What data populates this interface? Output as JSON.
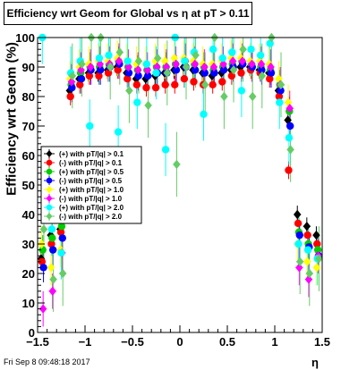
{
  "chart_data": {
    "type": "scatter",
    "title": "Efficiency wrt Geom for Global vs   η at pT > 0.11",
    "xlabel": "η",
    "ylabel": "Efficiency wrt Geom (%)",
    "xlim": [
      -1.5,
      1.5
    ],
    "ylim": [
      0,
      100
    ],
    "xticks": [
      "−1.5",
      "−1",
      "−0.5",
      "0",
      "0.5",
      "1",
      "1.5"
    ],
    "xtick_values": [
      -1.5,
      -1,
      -0.5,
      0,
      0.5,
      1,
      1.5
    ],
    "yticks": [
      "0",
      "10",
      "20",
      "30",
      "40",
      "50",
      "60",
      "70",
      "80",
      "90",
      "100"
    ],
    "ytick_values": [
      0,
      10,
      20,
      30,
      40,
      50,
      60,
      70,
      80,
      90,
      100
    ],
    "grid": false,
    "legend_position": "left-middle",
    "series": [
      {
        "name": "(+) with pT/|q| > 0.1",
        "color": "#000000",
        "err": 3,
        "x": [
          -1.45,
          -1.35,
          -1.25,
          -1.15,
          -1.05,
          -0.95,
          -0.85,
          -0.75,
          -0.65,
          -0.55,
          -0.45,
          -0.35,
          -0.25,
          -0.15,
          -0.05,
          0.05,
          0.15,
          0.25,
          0.35,
          0.45,
          0.55,
          0.65,
          0.75,
          0.85,
          0.95,
          1.05,
          1.15,
          1.25,
          1.35,
          1.45
        ],
        "y": [
          25,
          33,
          35,
          82,
          86,
          88,
          88,
          89,
          90,
          88,
          86,
          86,
          87,
          88,
          89,
          90,
          89,
          88,
          87,
          88,
          89,
          90,
          90,
          89,
          88,
          82,
          72,
          40,
          36,
          33
        ]
      },
      {
        "name": "(-) with pT/|q| > 0.1",
        "color": "#ff0000",
        "err": 3,
        "x": [
          -1.45,
          -1.35,
          -1.25,
          -1.15,
          -1.05,
          -0.95,
          -0.85,
          -0.75,
          -0.65,
          -0.55,
          -0.45,
          -0.35,
          -0.25,
          -0.15,
          -0.05,
          0.05,
          0.15,
          0.25,
          0.35,
          0.45,
          0.55,
          0.65,
          0.75,
          0.85,
          0.95,
          1.05,
          1.15,
          1.25,
          1.35,
          1.45
        ],
        "y": [
          24,
          30,
          34,
          80,
          84,
          87,
          87,
          88,
          89,
          86,
          84,
          83,
          83,
          84,
          84,
          86,
          85,
          84,
          84,
          85,
          87,
          88,
          89,
          88,
          86,
          80,
          55,
          37,
          33,
          30
        ]
      },
      {
        "name": "(+) with pT/|q| > 0.5",
        "color": "#00cc00",
        "err": 5,
        "x": [
          -1.45,
          -1.35,
          -1.25,
          -1.15,
          -1.05,
          -0.95,
          -0.85,
          -0.75,
          -0.65,
          -0.55,
          -0.45,
          -0.35,
          -0.25,
          -0.15,
          -0.05,
          0.05,
          0.15,
          0.25,
          0.35,
          0.45,
          0.55,
          0.65,
          0.75,
          0.85,
          0.95,
          1.05,
          1.15,
          1.25,
          1.35,
          1.45
        ],
        "y": [
          28,
          32,
          36,
          84,
          88,
          90,
          90,
          91,
          92,
          90,
          89,
          89,
          90,
          90,
          91,
          92,
          91,
          90,
          89,
          90,
          91,
          92,
          91,
          90,
          89,
          84,
          75,
          34,
          30,
          28
        ]
      },
      {
        "name": "(-) with pT/|q| > 0.5",
        "color": "#0000ff",
        "err": 5,
        "x": [
          -1.45,
          -1.35,
          -1.25,
          -1.15,
          -1.05,
          -0.95,
          -0.85,
          -0.75,
          -0.65,
          -0.55,
          -0.45,
          -0.35,
          -0.25,
          -0.15,
          -0.05,
          0.05,
          0.15,
          0.25,
          0.35,
          0.45,
          0.55,
          0.65,
          0.75,
          0.85,
          0.95,
          1.05,
          1.15,
          1.25,
          1.35,
          1.45
        ],
        "y": [
          22,
          28,
          32,
          83,
          86,
          89,
          89,
          90,
          91,
          88,
          87,
          87,
          88,
          88,
          89,
          90,
          89,
          88,
          88,
          89,
          90,
          91,
          90,
          89,
          88,
          82,
          70,
          33,
          29,
          26
        ]
      },
      {
        "name": "(+) with pT/|q| > 1.0",
        "color": "#ffff00",
        "err": 6,
        "x": [
          -1.45,
          -1.35,
          -1.25,
          -1.15,
          -1.05,
          -0.95,
          -0.85,
          -0.75,
          -0.65,
          -0.55,
          -0.45,
          -0.35,
          -0.25,
          -0.15,
          -0.05,
          0.05,
          0.15,
          0.25,
          0.35,
          0.45,
          0.55,
          0.65,
          0.75,
          0.85,
          0.95,
          1.05,
          1.15,
          1.25,
          1.35,
          1.45
        ],
        "y": [
          30,
          22,
          28,
          86,
          90,
          91,
          92,
          92,
          93,
          92,
          91,
          91,
          92,
          92,
          93,
          93,
          92,
          91,
          91,
          92,
          93,
          93,
          92,
          92,
          91,
          86,
          78,
          30,
          24,
          22
        ]
      },
      {
        "name": "(-) with pT/|q| > 1.0",
        "color": "#ff00ff",
        "err": 6,
        "x": [
          -1.45,
          -1.35,
          -1.25,
          -1.15,
          -1.05,
          -0.95,
          -0.85,
          -0.75,
          -0.65,
          -0.55,
          -0.45,
          -0.35,
          -0.25,
          -0.15,
          -0.05,
          0.05,
          0.15,
          0.25,
          0.35,
          0.45,
          0.55,
          0.65,
          0.75,
          0.85,
          0.95,
          1.05,
          1.15,
          1.25,
          1.35,
          1.45
        ],
        "y": [
          8,
          14,
          27,
          85,
          89,
          90,
          91,
          91,
          92,
          90,
          89,
          89,
          90,
          90,
          91,
          92,
          91,
          90,
          90,
          91,
          92,
          92,
          91,
          91,
          90,
          84,
          76,
          22,
          18,
          26
        ]
      },
      {
        "name": "(+) with pT/|q| > 2.0",
        "color": "#00ffff",
        "err": 9,
        "x": [
          -1.45,
          -1.35,
          -1.25,
          -1.15,
          -1.05,
          -0.95,
          -0.85,
          -0.75,
          -0.65,
          -0.55,
          -0.45,
          -0.35,
          -0.25,
          -0.15,
          -0.05,
          0.05,
          0.15,
          0.25,
          0.35,
          0.45,
          0.55,
          0.65,
          0.75,
          0.85,
          0.95,
          1.05,
          1.15,
          1.25,
          1.35,
          1.45
        ],
        "y": [
          100,
          35,
          27,
          88,
          92,
          70,
          93,
          94,
          68,
          92,
          78,
          91,
          88,
          62,
          100,
          92,
          95,
          74,
          96,
          93,
          95,
          82,
          96,
          94,
          98,
          78,
          66,
          30,
          28,
          25
        ]
      },
      {
        "name": "(-) with pT/|q| > 2.0",
        "color": "#66cc66",
        "err": 11,
        "x": [
          -1.45,
          -1.35,
          -1.25,
          -1.15,
          -1.05,
          -0.95,
          -0.85,
          -0.75,
          -0.65,
          -0.55,
          -0.45,
          -0.35,
          -0.25,
          -0.15,
          -0.05,
          0.05,
          0.15,
          0.25,
          0.35,
          0.45,
          0.55,
          0.65,
          0.75,
          0.85,
          0.95,
          1.05,
          1.15,
          1.25,
          1.35,
          1.45
        ],
        "y": [
          35,
          18,
          20,
          87,
          91,
          100,
          100,
          90,
          95,
          82,
          92,
          77,
          93,
          88,
          57,
          90,
          94,
          84,
          100,
          80,
          89,
          96,
          80,
          87,
          100,
          84,
          62,
          24,
          20,
          25
        ]
      }
    ]
  },
  "footer": {
    "date": "Fri Sep  8 09:48:18 2017"
  }
}
